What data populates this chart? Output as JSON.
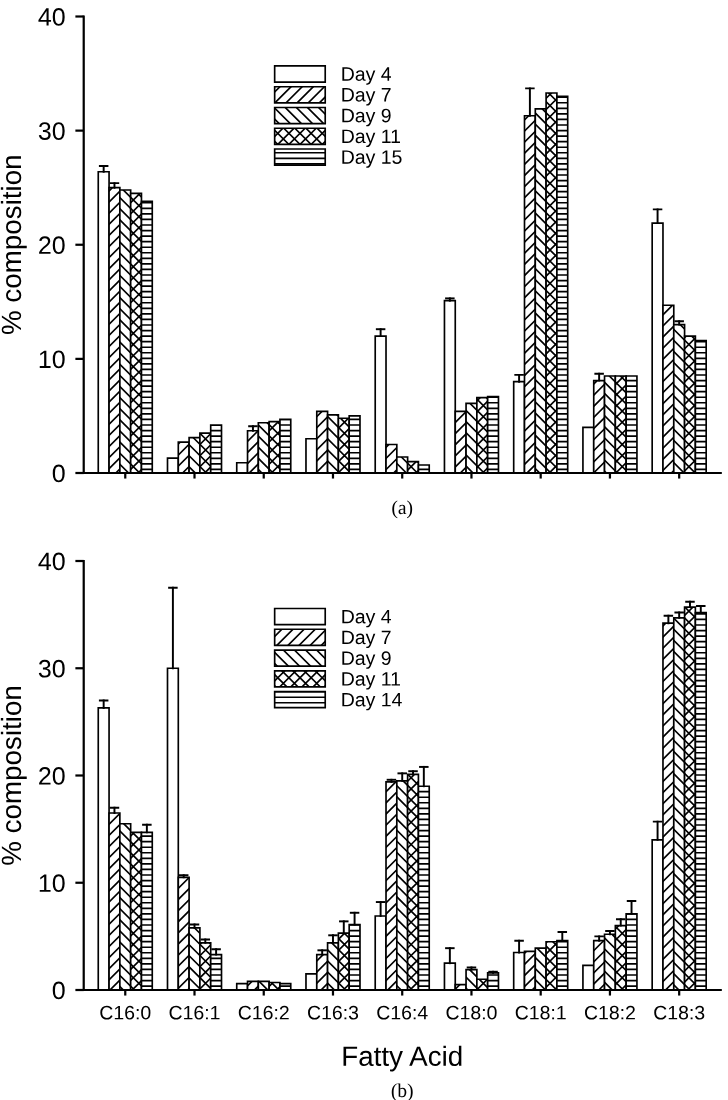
{
  "chart_data": [
    {
      "type": "bar",
      "ylabel": "% composition",
      "annotations": [
        "(a)"
      ],
      "categories": [
        null,
        null,
        null,
        null,
        null,
        null,
        null,
        null,
        null
      ],
      "tick_labels": "y",
      "ylim": [
        0,
        40
      ],
      "yticks": [
        0,
        10,
        20,
        30,
        40
      ],
      "grid": false,
      "legend": "top",
      "series": [
        {
          "name": "Day 4",
          "color": "#ffffff",
          "values": [
            26.4,
            1.3,
            0.9,
            3.0,
            12.0,
            15.1,
            8.0,
            4.0,
            21.9
          ],
          "errors": [
            [
              26.4,
              26.9
            ],
            null,
            null,
            null,
            [
              12.0,
              12.6
            ],
            [
              15.1,
              15.3
            ],
            [
              8.0,
              8.6
            ],
            null,
            [
              21.9,
              23.1
            ]
          ]
        },
        {
          "name": "Day 7",
          "color": "#000000",
          "values": [
            25.0,
            2.7,
            3.7,
            5.4,
            2.5,
            5.4,
            31.3,
            8.1,
            14.7
          ],
          "errors": [
            [
              25.0,
              25.4
            ],
            null,
            [
              3.7,
              4.1
            ],
            null,
            null,
            null,
            [
              31.3,
              33.7
            ],
            [
              8.1,
              8.7
            ],
            null
          ]
        },
        {
          "name": "Day 9",
          "color": "#000000",
          "values": [
            24.8,
            3.1,
            4.4,
            5.1,
            1.4,
            6.1,
            31.9,
            8.5,
            13.0
          ],
          "errors": [
            null,
            null,
            null,
            null,
            null,
            null,
            null,
            null,
            [
              13.0,
              13.3
            ]
          ]
        },
        {
          "name": "Day 11",
          "color": "#000000",
          "values": [
            24.5,
            3.5,
            4.5,
            4.8,
            1.0,
            6.6,
            33.3,
            8.5,
            12.0
          ],
          "errors": [
            null,
            null,
            null,
            null,
            null,
            null,
            null,
            null,
            null
          ]
        },
        {
          "name": "Day 15",
          "color": "#000000",
          "values": [
            23.8,
            4.2,
            4.7,
            5.0,
            0.7,
            6.7,
            33.0,
            8.5,
            11.6
          ],
          "errors": [
            null,
            null,
            null,
            null,
            null,
            null,
            null,
            null,
            null
          ]
        }
      ]
    },
    {
      "type": "bar",
      "xlabel": "Fatty Acid",
      "ylabel": "% composition",
      "annotations": [
        "(b)"
      ],
      "categories": [
        "C16:0",
        "C16:1",
        "C16:2",
        "C16:3",
        "C16:4",
        "C18:0",
        "C18:1",
        "C18:2",
        "C18:3"
      ],
      "ylim": [
        0,
        40
      ],
      "yticks": [
        0,
        10,
        20,
        30,
        40
      ],
      "grid": false,
      "legend": "top",
      "series": [
        {
          "name": "Day 4",
          "color": "#ffffff",
          "values": [
            26.3,
            30.0,
            0.6,
            1.5,
            6.9,
            2.5,
            3.5,
            2.3,
            14.0
          ],
          "errors": [
            [
              26.3,
              27.0
            ],
            [
              30.0,
              37.5
            ],
            null,
            null,
            [
              6.9,
              8.2
            ],
            [
              2.5,
              3.9
            ],
            [
              3.5,
              4.6
            ],
            null,
            [
              14.0,
              15.7
            ]
          ]
        },
        {
          "name": "Day 7",
          "color": "#000000",
          "values": [
            16.5,
            10.5,
            0.8,
            3.3,
            19.4,
            0.5,
            3.6,
            4.6,
            34.2
          ],
          "errors": [
            [
              16.5,
              17.0
            ],
            [
              10.5,
              10.7
            ],
            null,
            [
              3.3,
              3.7
            ],
            [
              19.4,
              19.6
            ],
            null,
            null,
            [
              4.6,
              5.0
            ],
            [
              34.2,
              34.9
            ]
          ]
        },
        {
          "name": "Day 9",
          "color": "#000000",
          "values": [
            15.5,
            5.8,
            0.8,
            4.4,
            19.5,
            1.9,
            3.9,
            5.2,
            34.7
          ],
          "errors": [
            null,
            [
              5.8,
              6.1
            ],
            null,
            [
              4.4,
              5.1
            ],
            [
              19.5,
              20.2
            ],
            [
              1.9,
              2.1
            ],
            null,
            [
              5.2,
              5.5
            ],
            [
              34.7,
              35.2
            ]
          ]
        },
        {
          "name": "Day 11",
          "color": "#000000",
          "values": [
            14.7,
            4.4,
            0.7,
            5.3,
            20.1,
            1.0,
            4.5,
            6.0,
            35.7
          ],
          "errors": [
            null,
            [
              4.4,
              4.7
            ],
            null,
            [
              5.3,
              6.4
            ],
            [
              20.1,
              20.4
            ],
            null,
            null,
            [
              6.0,
              6.6
            ],
            [
              35.7,
              36.2
            ]
          ]
        },
        {
          "name": "Day 14",
          "color": "#000000",
          "values": [
            14.7,
            3.3,
            0.6,
            6.1,
            19.0,
            1.6,
            4.6,
            7.1,
            35.2
          ],
          "errors": [
            [
              14.7,
              15.4
            ],
            [
              3.3,
              3.8
            ],
            null,
            [
              6.1,
              7.2
            ],
            [
              19.0,
              20.8
            ],
            [
              1.6,
              1.7
            ],
            [
              4.6,
              5.4
            ],
            [
              7.1,
              8.3
            ],
            [
              35.2,
              35.8
            ]
          ]
        }
      ]
    }
  ]
}
